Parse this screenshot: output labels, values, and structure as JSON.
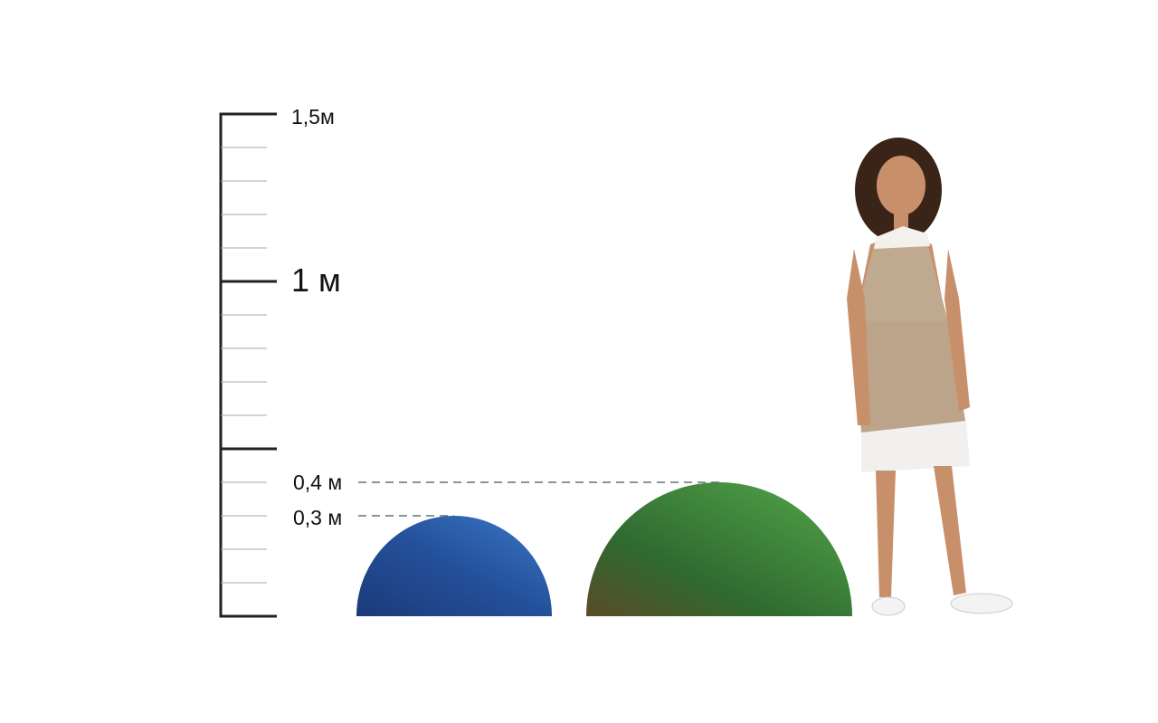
{
  "scale": {
    "labels": [
      {
        "value": 1.5,
        "text": "1,5м"
      },
      {
        "value": 1.0,
        "text": "1 м"
      }
    ],
    "range_m": [
      0,
      1.5
    ],
    "minor_step_m": 0.1,
    "major_step_m": 0.5
  },
  "objects": [
    {
      "name": "blue-hemisphere",
      "height_m": 0.3,
      "label": "0,3 м",
      "color": "#2d5ea8"
    },
    {
      "name": "green-hemisphere",
      "height_m": 0.4,
      "label": "0,4 м",
      "color": "#3f8c3a"
    }
  ],
  "figure": {
    "name": "girl",
    "dress_color": "#bfa98f"
  }
}
